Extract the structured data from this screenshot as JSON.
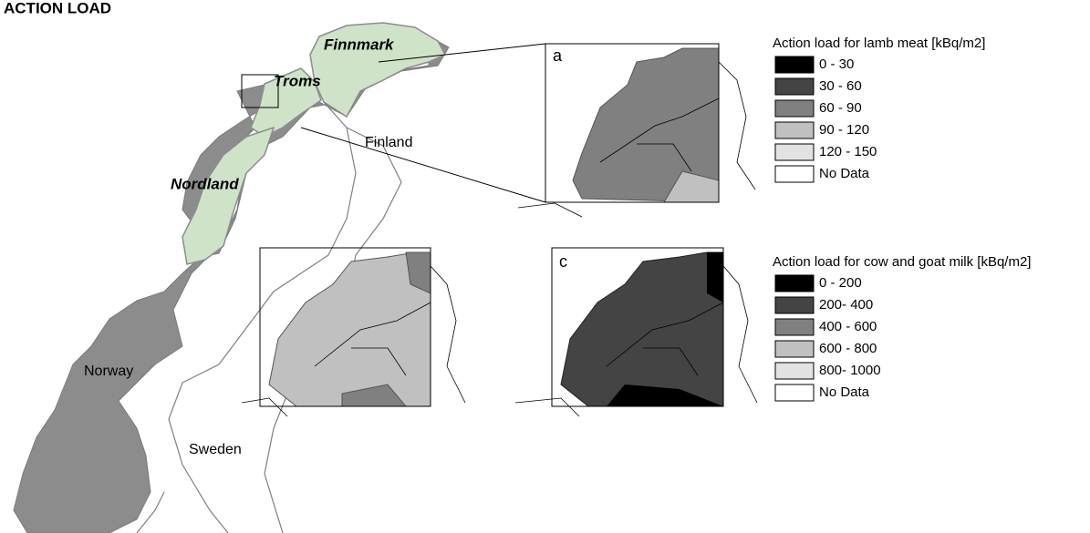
{
  "title": "ACTION LOAD",
  "places": {
    "finnmark": "Finnmark",
    "troms": "Troms",
    "nordland": "Nordland",
    "finland": "Finland",
    "norway": "Norway",
    "sweden": "Sweden"
  },
  "panels": {
    "a": "a",
    "c": "c"
  },
  "legends": [
    {
      "title": "Action load for lamb meat [kBq/m2]",
      "items": [
        {
          "label": "0 - 30",
          "color": "#000000"
        },
        {
          "label": "30 - 60",
          "color": "#444444"
        },
        {
          "label": "60 - 90",
          "color": "#808080"
        },
        {
          "label": "90 - 120",
          "color": "#c0c0c0"
        },
        {
          "label": "120 - 150",
          "color": "#e2e2e2"
        },
        {
          "label": "No Data",
          "color": "#ffffff"
        }
      ]
    },
    {
      "title": "Action load for cow and goat milk [kBq/m2]",
      "items": [
        {
          "label": "0 - 200",
          "color": "#000000"
        },
        {
          "label": "200- 400",
          "color": "#444444"
        },
        {
          "label": "400 - 600",
          "color": "#808080"
        },
        {
          "label": "600 - 800",
          "color": "#c0c0c0"
        },
        {
          "label": "800- 1000",
          "color": "#e2e2e2"
        },
        {
          "label": "No Data",
          "color": "#ffffff"
        }
      ]
    }
  ]
}
